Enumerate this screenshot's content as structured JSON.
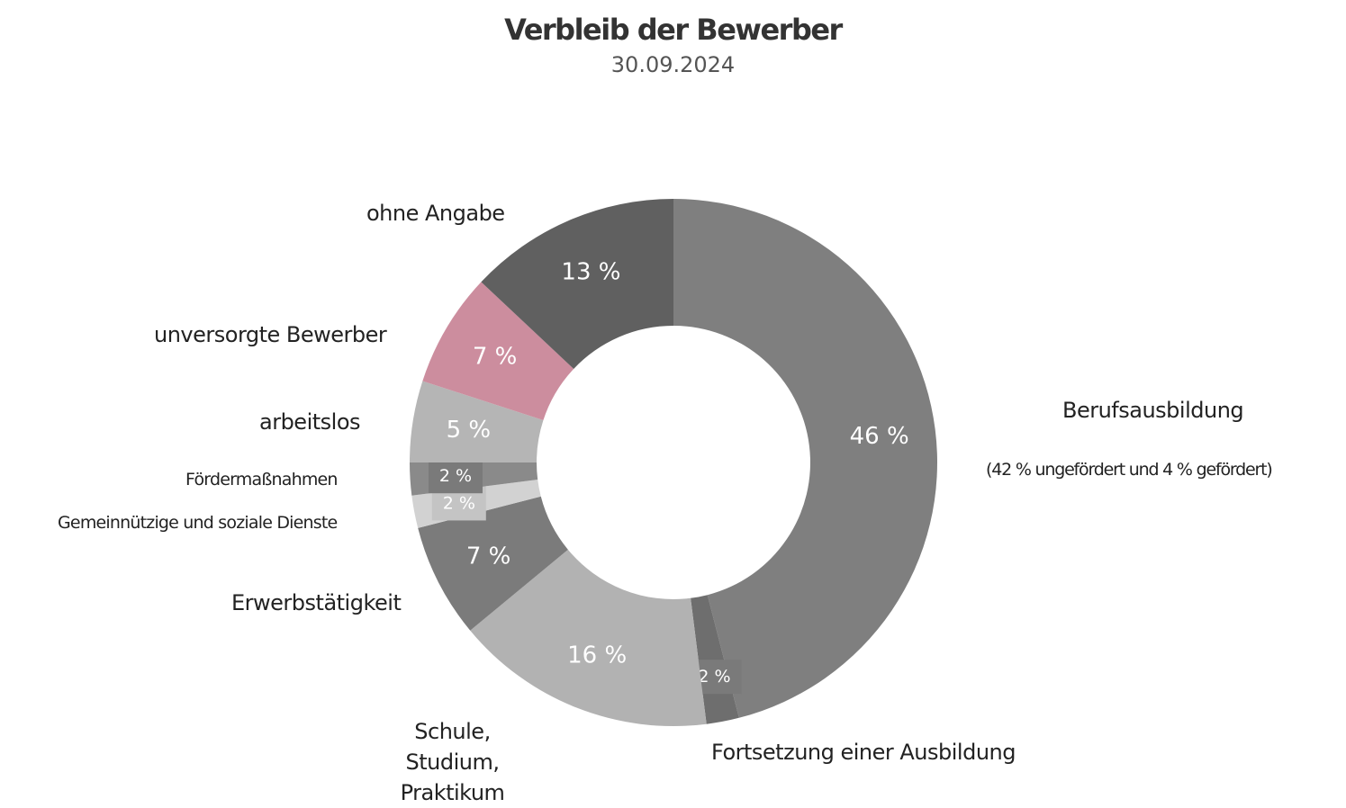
{
  "chart_data": {
    "type": "pie",
    "title": "Verbleib der Bewerber",
    "subtitle": "30.09.2024",
    "slices": [
      {
        "label": "Berufsausbildung",
        "note": "(42 % ungefördert und 4 % gefördert)",
        "value": 46,
        "value_label": "46 %",
        "color": "#7f7f7f"
      },
      {
        "label": "Fortsetzung einer Ausbildung",
        "value": 2,
        "value_label": "2 %",
        "color": "#6e6e6e"
      },
      {
        "label": "Schule, Studium, Praktikum",
        "value": 16,
        "value_label": "16 %",
        "color": "#b2b2b2"
      },
      {
        "label": "Erwerbstätigkeit",
        "value": 7,
        "value_label": "7 %",
        "color": "#7b7b7b"
      },
      {
        "label": "Gemeinnützige und soziale Dienste",
        "value": 2,
        "value_label": "2 %",
        "color": "#d2d2d2"
      },
      {
        "label": "Fördermaßnahmen",
        "value": 2,
        "value_label": "2 %",
        "color": "#8a8a8a"
      },
      {
        "label": "arbeitslos",
        "value": 5,
        "value_label": "5 %",
        "color": "#b5b5b5"
      },
      {
        "label": "unversorgte Bewerber",
        "value": 7,
        "value_label": "7 %",
        "color": "#cc8d9e"
      },
      {
        "label": "ohne Angabe",
        "value": 13,
        "value_label": "13 %",
        "color": "#606060"
      }
    ],
    "start_position": "top",
    "direction": "clockwise",
    "legend": "none"
  }
}
